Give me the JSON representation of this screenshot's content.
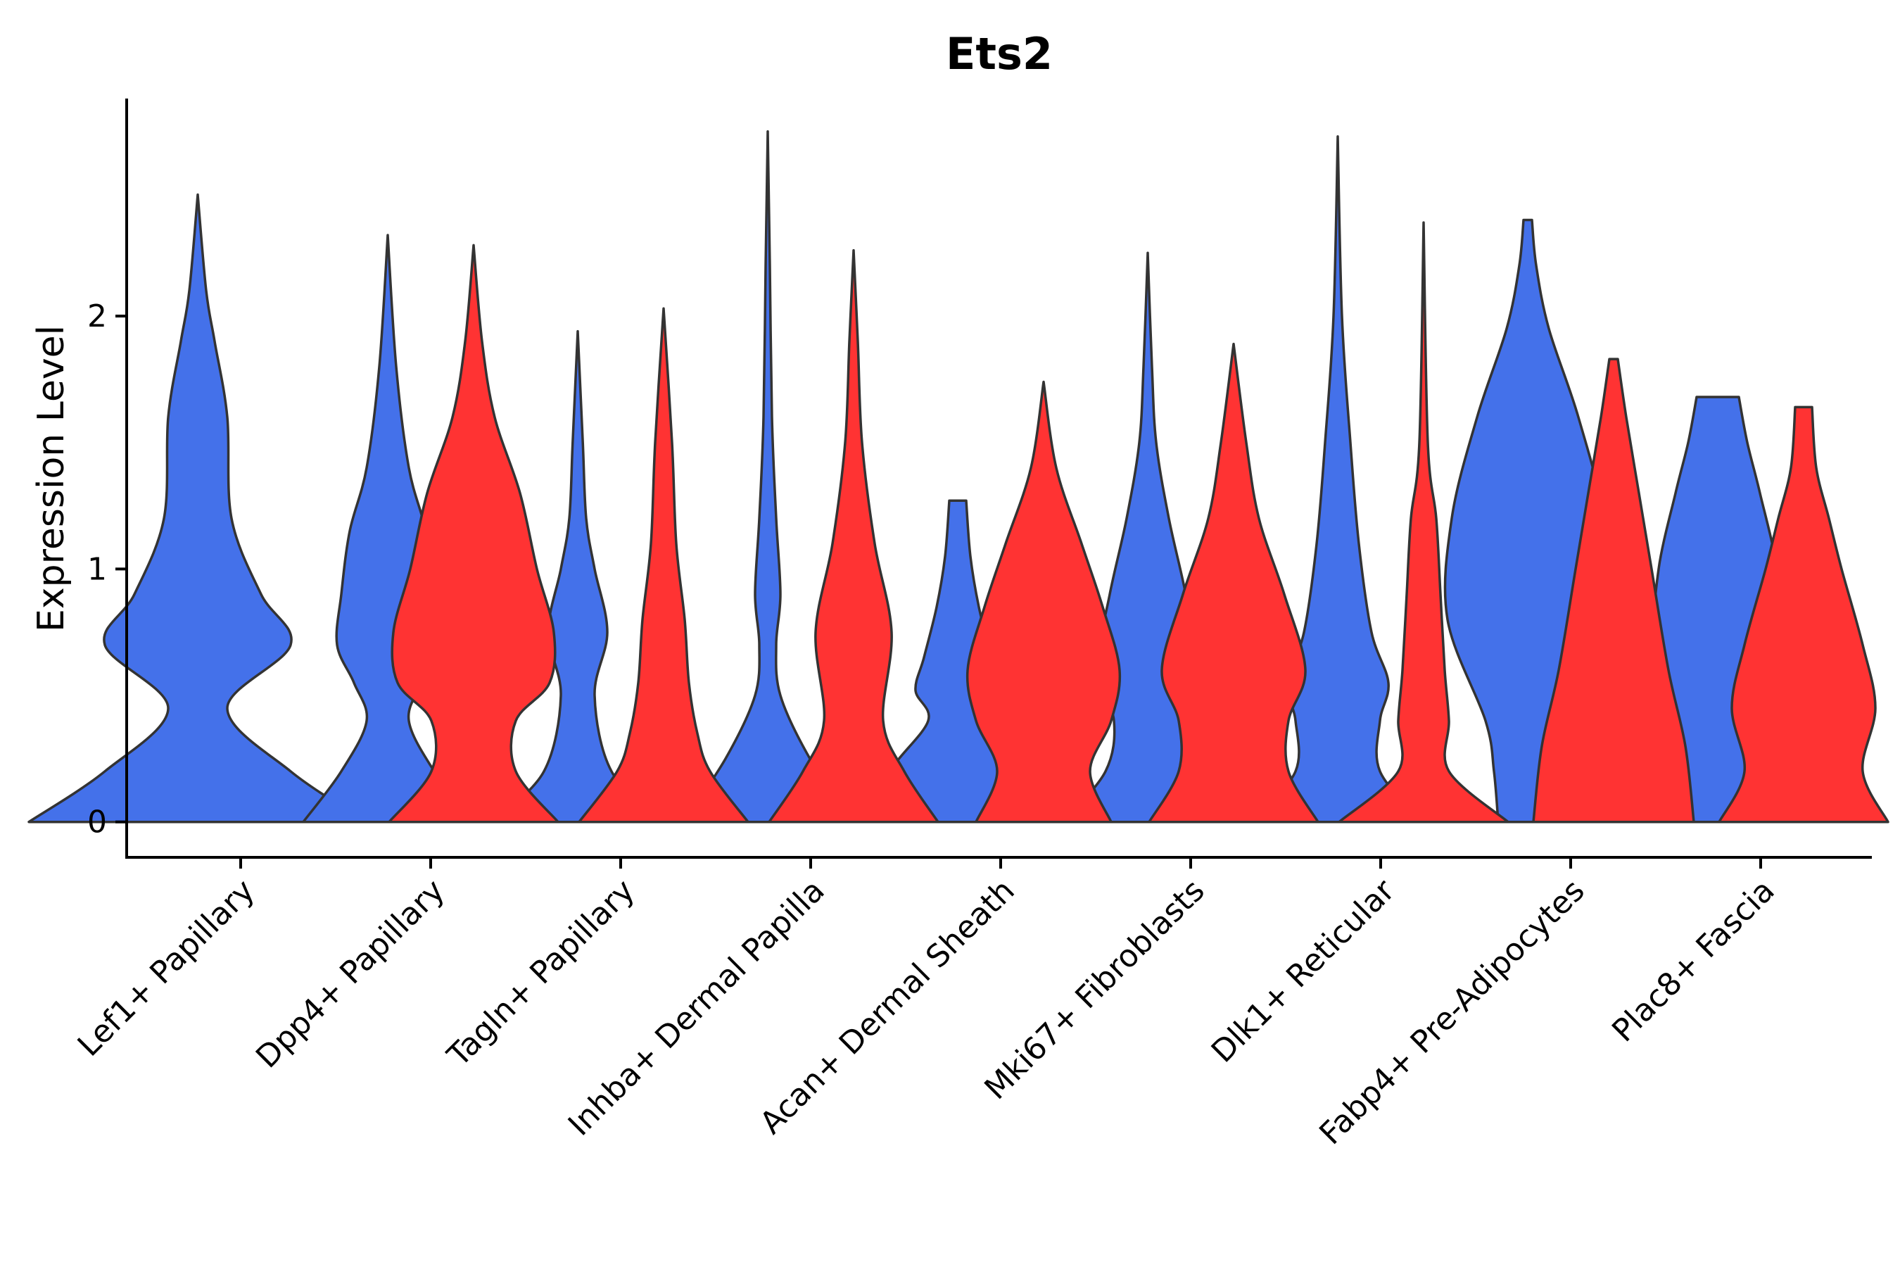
{
  "chart_data": {
    "type": "violin",
    "title": "Ets2",
    "ylabel": "Expression Level",
    "xlabel": "",
    "ylim": [
      -0.14,
      2.86
    ],
    "yticks": [
      0,
      1,
      2
    ],
    "categories": [
      "Lef1+ Papillary",
      "Dpp4+ Papillary",
      "Tagln+ Papillary",
      "Inhba+ Dermal Papilla",
      "Acan+ Dermal Sheath",
      "Mki67+ Fibroblasts",
      "Dlk1+ Reticular",
      "Fabp4+ Pre-Adipocytes",
      "Plac8+ Fascia"
    ],
    "colors": {
      "blue": "#4471EA",
      "red": "#FF3333",
      "outline": "#333333"
    },
    "series": [
      {
        "name": "blue",
        "color": "#4471EA",
        "violins": [
          {
            "category_index": 0,
            "max": 2.48,
            "profile": [
              [
                0,
                0.4
              ],
              [
                0.2,
                0.22
              ],
              [
                0.45,
                0.07
              ],
              [
                0.7,
                0.22
              ],
              [
                0.9,
                0.15
              ],
              [
                1.2,
                0.08
              ],
              [
                1.6,
                0.07
              ],
              [
                1.9,
                0.04
              ],
              [
                2.1,
                0.02
              ],
              [
                2.48,
                0.0
              ]
            ]
          },
          {
            "category_index": 1,
            "max": 2.32,
            "profile": [
              [
                0,
                0.2
              ],
              [
                0.2,
                0.11
              ],
              [
                0.4,
                0.05
              ],
              [
                0.55,
                0.08
              ],
              [
                0.7,
                0.12
              ],
              [
                0.9,
                0.11
              ],
              [
                1.15,
                0.09
              ],
              [
                1.4,
                0.05
              ],
              [
                1.8,
                0.02
              ],
              [
                2.32,
                0.0
              ]
            ]
          },
          {
            "category_index": 2,
            "max": 1.94,
            "profile": [
              [
                0,
                0.2
              ],
              [
                0.2,
                0.08
              ],
              [
                0.5,
                0.04
              ],
              [
                0.75,
                0.07
              ],
              [
                1.0,
                0.04
              ],
              [
                1.2,
                0.02
              ],
              [
                1.5,
                0.012
              ],
              [
                1.94,
                0.0
              ]
            ]
          },
          {
            "category_index": 3,
            "max": 2.73,
            "profile": [
              [
                0,
                0.2
              ],
              [
                0.25,
                0.1
              ],
              [
                0.5,
                0.03
              ],
              [
                0.7,
                0.02
              ],
              [
                0.9,
                0.03
              ],
              [
                1.2,
                0.02
              ],
              [
                1.6,
                0.01
              ],
              [
                2.2,
                0.005
              ],
              [
                2.73,
                0.0
              ]
            ]
          },
          {
            "category_index": 4,
            "max": 1.27,
            "profile": [
              [
                0,
                0.2
              ],
              [
                0.2,
                0.16
              ],
              [
                0.4,
                0.07
              ],
              [
                0.52,
                0.1
              ],
              [
                0.65,
                0.08
              ],
              [
                0.85,
                0.05
              ],
              [
                1.05,
                0.03
              ],
              [
                1.27,
                0.02
              ]
            ]
          },
          {
            "category_index": 5,
            "max": 2.25,
            "profile": [
              [
                0,
                0.2
              ],
              [
                0.2,
                0.1
              ],
              [
                0.4,
                0.08
              ],
              [
                0.6,
                0.12
              ],
              [
                0.9,
                0.09
              ],
              [
                1.2,
                0.05
              ],
              [
                1.5,
                0.02
              ],
              [
                1.8,
                0.01
              ],
              [
                2.25,
                0.0
              ]
            ]
          },
          {
            "category_index": 6,
            "max": 2.71,
            "profile": [
              [
                0,
                0.2
              ],
              [
                0.2,
                0.1
              ],
              [
                0.4,
                0.1
              ],
              [
                0.55,
                0.12
              ],
              [
                0.75,
                0.08
              ],
              [
                1.1,
                0.05
              ],
              [
                1.5,
                0.03
              ],
              [
                2.0,
                0.01
              ],
              [
                2.71,
                0.0
              ]
            ]
          },
          {
            "category_index": 7,
            "max": 2.38,
            "profile": [
              [
                0,
                0.07
              ],
              [
                0.2,
                0.08
              ],
              [
                0.4,
                0.1
              ],
              [
                0.8,
                0.19
              ],
              [
                1.2,
                0.18
              ],
              [
                1.6,
                0.12
              ],
              [
                1.95,
                0.05
              ],
              [
                2.2,
                0.02
              ],
              [
                2.38,
                0.01
              ]
            ]
          },
          {
            "category_index": 8,
            "max": 1.68,
            "profile": [
              [
                0,
                0.2
              ],
              [
                0.2,
                0.12
              ],
              [
                0.4,
                0.11
              ],
              [
                0.7,
                0.15
              ],
              [
                1.0,
                0.14
              ],
              [
                1.3,
                0.1
              ],
              [
                1.5,
                0.07
              ],
              [
                1.68,
                0.05
              ]
            ]
          }
        ]
      },
      {
        "name": "red",
        "color": "#FF3333",
        "violins": [
          {
            "category_index": 1,
            "max": 2.28,
            "profile": [
              [
                0,
                0.2
              ],
              [
                0.2,
                0.1
              ],
              [
                0.4,
                0.1
              ],
              [
                0.55,
                0.18
              ],
              [
                0.75,
                0.19
              ],
              [
                1.0,
                0.15
              ],
              [
                1.3,
                0.11
              ],
              [
                1.6,
                0.05
              ],
              [
                1.9,
                0.02
              ],
              [
                2.28,
                0.0
              ]
            ]
          },
          {
            "category_index": 2,
            "max": 2.03,
            "profile": [
              [
                0,
                0.2
              ],
              [
                0.2,
                0.11
              ],
              [
                0.35,
                0.08
              ],
              [
                0.55,
                0.06
              ],
              [
                0.8,
                0.05
              ],
              [
                1.1,
                0.03
              ],
              [
                1.5,
                0.02
              ],
              [
                2.03,
                0.0
              ]
            ]
          },
          {
            "category_index": 3,
            "max": 2.26,
            "profile": [
              [
                0,
                0.2
              ],
              [
                0.2,
                0.12
              ],
              [
                0.4,
                0.07
              ],
              [
                0.75,
                0.09
              ],
              [
                1.1,
                0.05
              ],
              [
                1.5,
                0.02
              ],
              [
                1.9,
                0.01
              ],
              [
                2.26,
                0.0
              ]
            ]
          },
          {
            "category_index": 4,
            "max": 1.74,
            "profile": [
              [
                0,
                0.16
              ],
              [
                0.2,
                0.11
              ],
              [
                0.4,
                0.16
              ],
              [
                0.6,
                0.18
              ],
              [
                0.85,
                0.14
              ],
              [
                1.1,
                0.09
              ],
              [
                1.4,
                0.03
              ],
              [
                1.74,
                0.0
              ]
            ]
          },
          {
            "category_index": 5,
            "max": 1.89,
            "profile": [
              [
                0,
                0.2
              ],
              [
                0.2,
                0.13
              ],
              [
                0.4,
                0.13
              ],
              [
                0.6,
                0.17
              ],
              [
                0.9,
                0.12
              ],
              [
                1.2,
                0.06
              ],
              [
                1.5,
                0.03
              ],
              [
                1.89,
                0.0
              ]
            ]
          },
          {
            "category_index": 6,
            "max": 2.37,
            "profile": [
              [
                0,
                0.2
              ],
              [
                0.2,
                0.06
              ],
              [
                0.4,
                0.06
              ],
              [
                0.6,
                0.05
              ],
              [
                0.9,
                0.04
              ],
              [
                1.2,
                0.03
              ],
              [
                1.5,
                0.01
              ],
              [
                2.37,
                0.0
              ]
            ]
          },
          {
            "category_index": 7,
            "max": 1.83,
            "profile": [
              [
                0,
                0.19
              ],
              [
                0.3,
                0.17
              ],
              [
                0.6,
                0.13
              ],
              [
                1.0,
                0.09
              ],
              [
                1.3,
                0.06
              ],
              [
                1.6,
                0.03
              ],
              [
                1.83,
                0.01
              ]
            ]
          },
          {
            "category_index": 8,
            "max": 1.64,
            "profile": [
              [
                0,
                0.2
              ],
              [
                0.2,
                0.14
              ],
              [
                0.45,
                0.17
              ],
              [
                0.7,
                0.14
              ],
              [
                1.0,
                0.09
              ],
              [
                1.2,
                0.06
              ],
              [
                1.4,
                0.03
              ],
              [
                1.64,
                0.02
              ]
            ]
          }
        ]
      }
    ]
  }
}
